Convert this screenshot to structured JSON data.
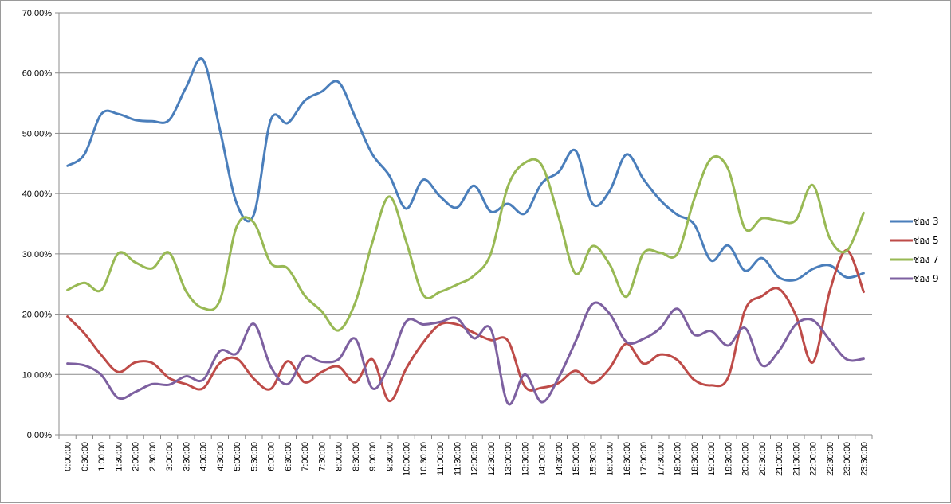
{
  "chart_data": {
    "type": "line",
    "title": "",
    "xlabel": "",
    "ylabel": "",
    "ylim": [
      0,
      70
    ],
    "y_ticks": [
      "0.00%",
      "10.00%",
      "20.00%",
      "30.00%",
      "40.00%",
      "50.00%",
      "60.00%",
      "70.00%"
    ],
    "grid": "horizontal",
    "legend_position": "right",
    "categories": [
      "0:00:00",
      "0:30:00",
      "1:00:00",
      "1:30:00",
      "2:00:00",
      "2:30:00",
      "3:00:00",
      "3:30:00",
      "4:00:00",
      "4:30:00",
      "5:00:00",
      "5:30:00",
      "6:00:00",
      "6:30:00",
      "7:00:00",
      "7:30:00",
      "8:00:00",
      "8:30:00",
      "9:00:00",
      "9:30:00",
      "10:00:00",
      "10:30:00",
      "11:00:00",
      "11:30:00",
      "12:00:00",
      "12:30:00",
      "13:00:00",
      "13:30:00",
      "14:00:00",
      "14:30:00",
      "15:00:00",
      "15:30:00",
      "16:00:00",
      "16:30:00",
      "17:00:00",
      "17:30:00",
      "18:00:00",
      "18:30:00",
      "19:00:00",
      "19:30:00",
      "20:00:00",
      "20:30:00",
      "21:00:00",
      "21:30:00",
      "22:00:00",
      "22:30:00",
      "23:00:00",
      "23:30:00"
    ],
    "series": [
      {
        "name": "ช่อง 3",
        "color": "#4a7ebb",
        "values": [
          44.6,
          46.5,
          53.2,
          53.2,
          52.2,
          52.0,
          52.2,
          57.6,
          62.2,
          50.6,
          38.3,
          36.5,
          52.2,
          51.7,
          55.4,
          56.9,
          58.5,
          52.6,
          46.5,
          43.0,
          37.5,
          42.3,
          39.5,
          37.7,
          41.3,
          37.0,
          38.3,
          36.7,
          41.7,
          43.6,
          47.1,
          38.3,
          40.4,
          46.5,
          42.4,
          38.9,
          36.5,
          34.9,
          28.9,
          31.4,
          27.2,
          29.3,
          26.1,
          25.7,
          27.5,
          28.1,
          26.1,
          26.8
        ]
      },
      {
        "name": "ช่อง 5",
        "color": "#be4b48",
        "values": [
          19.6,
          16.8,
          13.2,
          10.4,
          12.0,
          11.9,
          9.4,
          8.4,
          7.7,
          11.9,
          12.6,
          9.3,
          7.6,
          12.2,
          8.7,
          10.4,
          11.3,
          8.7,
          12.5,
          5.6,
          11.0,
          15.3,
          18.3,
          18.3,
          16.9,
          15.7,
          15.6,
          8.0,
          7.8,
          8.6,
          10.6,
          8.6,
          11.0,
          15.1,
          11.8,
          13.3,
          12.4,
          9.1,
          8.2,
          9.5,
          20.7,
          23.0,
          24.2,
          19.8,
          12.0,
          23.8,
          30.6,
          23.7
        ]
      },
      {
        "name": "ช่อง 7",
        "color": "#98b954",
        "values": [
          24.0,
          25.2,
          24.0,
          30.1,
          28.6,
          27.6,
          30.2,
          23.8,
          21.0,
          22.3,
          34.6,
          35.2,
          28.5,
          27.6,
          23.1,
          20.5,
          17.3,
          22.0,
          31.9,
          39.5,
          32.0,
          23.2,
          23.7,
          24.9,
          26.4,
          30.1,
          41.2,
          45.1,
          44.7,
          36.1,
          26.7,
          31.3,
          28.3,
          22.9,
          30.1,
          30.2,
          30.0,
          39.1,
          45.8,
          44.1,
          34.2,
          35.9,
          35.5,
          35.6,
          41.4,
          32.6,
          30.5,
          36.8
        ]
      },
      {
        "name": "ช่อง 9",
        "color": "#7d60a0",
        "values": [
          11.8,
          11.5,
          9.9,
          6.1,
          7.1,
          8.4,
          8.3,
          9.7,
          9.1,
          13.9,
          13.5,
          18.4,
          11.3,
          8.4,
          12.9,
          12.1,
          12.5,
          15.9,
          7.7,
          11.7,
          18.8,
          18.3,
          18.7,
          19.3,
          16.0,
          17.5,
          5.2,
          10.0,
          5.4,
          9.5,
          15.5,
          21.7,
          20.1,
          15.4,
          15.9,
          17.7,
          20.9,
          16.6,
          17.2,
          14.8,
          17.7,
          11.5,
          13.9,
          18.3,
          19.0,
          15.7,
          12.5,
          12.6
        ]
      }
    ]
  }
}
